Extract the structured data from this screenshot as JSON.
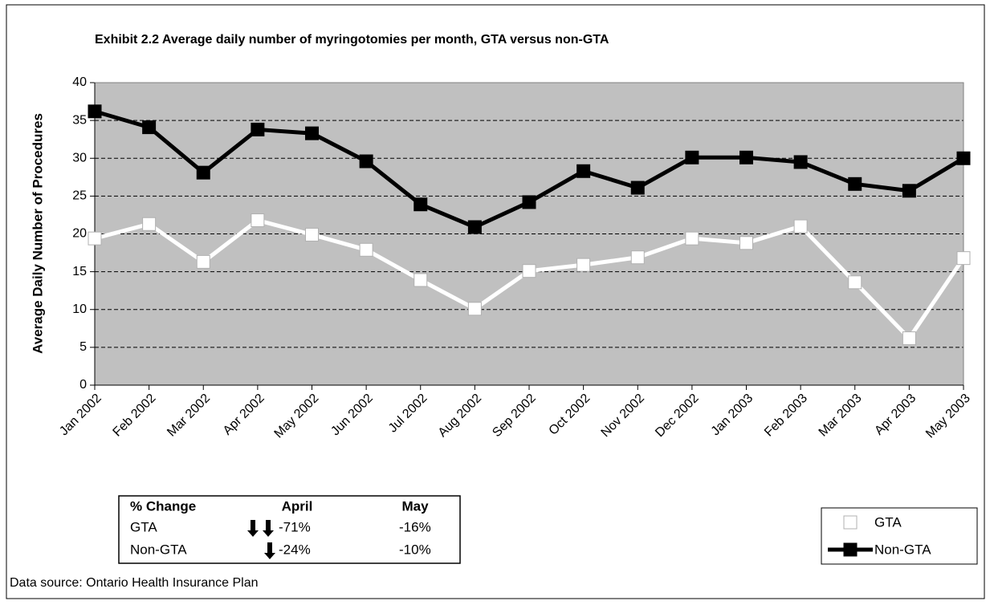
{
  "chart_data": {
    "type": "line",
    "title": "Exhibit 2.2 Average daily number of myringotomies per month, GTA versus non-GTA",
    "y_label": "Average Daily Number of Procedures",
    "categories": [
      "Jan 2002",
      "Feb 2002",
      "Mar 2002",
      "Apr 2002",
      "May 2002",
      "Jun 2002",
      "Jul 2002",
      "Aug 2002",
      "Sep 2002",
      "Oct 2002",
      "Nov 2002",
      "Dec 2002",
      "Jan 2003",
      "Feb 2003",
      "Mar 2003",
      "Apr 2003",
      "May 2003"
    ],
    "series": [
      {
        "name": "GTA",
        "color": "#ffffff",
        "values": [
          19.4,
          21.3,
          16.3,
          21.8,
          19.9,
          17.9,
          13.9,
          10.1,
          15.1,
          15.9,
          16.9,
          19.4,
          18.8,
          21.0,
          13.6,
          6.2,
          16.8
        ]
      },
      {
        "name": "Non-GTA",
        "color": "#000000",
        "values": [
          36.2,
          34.1,
          28.1,
          33.8,
          33.3,
          29.6,
          23.9,
          20.9,
          24.2,
          28.3,
          26.1,
          30.1,
          30.1,
          29.5,
          26.6,
          25.7,
          30.0
        ]
      }
    ],
    "ylim": [
      0,
      40
    ],
    "yticks": [
      0,
      5,
      10,
      15,
      20,
      25,
      30,
      35,
      40
    ],
    "grid": true,
    "legend": "lower right",
    "plot_background": "#c0c0c0"
  },
  "table": {
    "header": [
      "% Change",
      "April",
      "May"
    ],
    "rows": [
      [
        "GTA",
        "-71%",
        "-16%"
      ],
      [
        "Non-GTA",
        "-24%",
        "-10%"
      ]
    ]
  },
  "source": "Data source: Ontario Health Insurance Plan"
}
